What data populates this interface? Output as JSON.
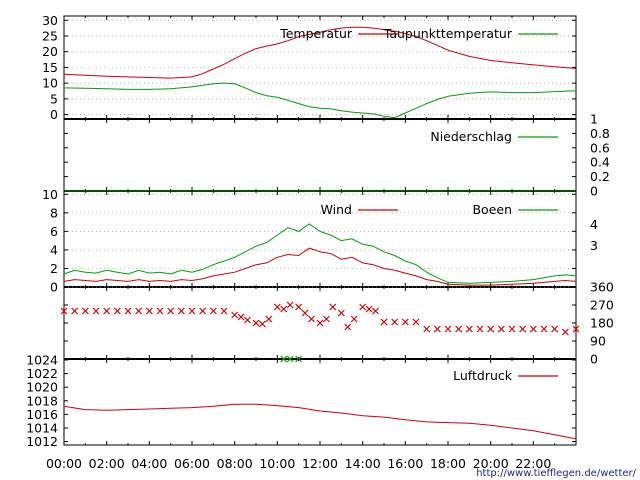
{
  "source_url": "http://www.tiefflegen.de/wetter/",
  "colors": {
    "red": "#d20000",
    "green": "#00a000",
    "grid": "#999999",
    "axis": "#000000"
  },
  "chart_data": [
    {
      "type": "line",
      "panel": "temperature",
      "x_ticks": [
        "00:00",
        "02:00",
        "04:00",
        "06:00",
        "08:00",
        "10:00",
        "12:00",
        "14:00",
        "16:00",
        "18:00",
        "20:00",
        "22:00"
      ],
      "ylim": [
        -3,
        32
      ],
      "y_ticks": [
        0,
        5,
        10,
        15,
        20,
        25,
        30
      ],
      "grid": "horizontal dotted",
      "legend_placement": "top",
      "series": [
        {
          "name": "Temperatur",
          "color": "#d20000",
          "x": [
            0,
            1,
            2,
            3,
            4,
            5,
            6,
            6.5,
            7,
            7.5,
            8,
            8.5,
            9,
            9.5,
            10,
            10.5,
            11,
            11.5,
            12,
            12.5,
            13,
            13.5,
            14,
            14.5,
            15,
            15.5,
            16,
            16.5,
            17,
            17.5,
            18,
            19,
            20,
            21,
            22,
            23,
            24
          ],
          "values": [
            12.8,
            12.5,
            12.2,
            12.0,
            11.8,
            11.6,
            12.0,
            13.0,
            14.5,
            16.0,
            17.8,
            19.5,
            21.0,
            21.8,
            22.5,
            23.5,
            24.8,
            25.5,
            26.2,
            27.0,
            27.5,
            27.8,
            27.8,
            27.5,
            27.0,
            26.5,
            25.8,
            24.8,
            23.5,
            22.0,
            20.5,
            18.5,
            17.2,
            16.5,
            15.8,
            15.2,
            14.7
          ]
        },
        {
          "name": "Taupunkttemperatur",
          "color": "#00a000",
          "x": [
            0,
            1,
            2,
            3,
            4,
            5,
            6,
            6.5,
            7,
            7.5,
            8,
            8.5,
            9,
            9.5,
            10,
            10.5,
            11,
            11.5,
            12,
            12.5,
            13,
            13.5,
            14,
            14.5,
            15,
            15.5,
            16,
            16.5,
            17,
            17.5,
            18,
            19,
            20,
            21,
            22,
            23,
            24
          ],
          "values": [
            8.5,
            8.4,
            8.2,
            8.0,
            8.0,
            8.2,
            8.8,
            9.3,
            9.8,
            10.0,
            9.8,
            8.5,
            7.0,
            6.0,
            5.5,
            4.5,
            3.5,
            2.5,
            2.0,
            1.8,
            1.2,
            0.8,
            0.5,
            0.2,
            -0.5,
            -1.0,
            0.5,
            2.0,
            3.5,
            4.8,
            5.8,
            6.8,
            7.2,
            7.0,
            7.0,
            7.3,
            7.6
          ]
        }
      ]
    },
    {
      "type": "line",
      "panel": "precipitation",
      "x_ticks": [
        "00:00",
        "02:00",
        "04:00",
        "06:00",
        "08:00",
        "10:00",
        "12:00",
        "14:00",
        "16:00",
        "18:00",
        "20:00",
        "22:00"
      ],
      "ylim": [
        0,
        1
      ],
      "y_ticks": [
        0,
        0.2,
        0.4,
        0.6,
        0.8,
        1
      ],
      "series": [
        {
          "name": "Niederschlag",
          "color": "#00a000",
          "x": [
            0,
            24
          ],
          "values": [
            0,
            0
          ]
        }
      ]
    },
    {
      "type": "line",
      "panel": "wind",
      "x_ticks": [
        "00:00",
        "02:00",
        "04:00",
        "06:00",
        "08:00",
        "10:00",
        "12:00",
        "14:00",
        "16:00",
        "18:00",
        "20:00",
        "22:00"
      ],
      "ylim": [
        0,
        11
      ],
      "y_ticks": [
        0,
        2,
        4,
        6,
        8,
        10
      ],
      "y2_ticks": [
        "3",
        "4"
      ],
      "grid": "horizontal dotted",
      "series": [
        {
          "name": "Wind",
          "color": "#d20000",
          "x": [
            0,
            0.5,
            1,
            1.5,
            2,
            2.5,
            3,
            3.5,
            4,
            4.5,
            5,
            5.5,
            6,
            6.5,
            7,
            7.5,
            8,
            8.5,
            9,
            9.5,
            10,
            10.5,
            11,
            11.5,
            12,
            12.5,
            13,
            13.5,
            14,
            14.5,
            15,
            15.5,
            16,
            16.5,
            17,
            17.5,
            18,
            19,
            20,
            21,
            22,
            22.5,
            23,
            23.5,
            24
          ],
          "values": [
            0.6,
            0.8,
            0.7,
            0.6,
            0.8,
            0.7,
            0.6,
            0.8,
            0.6,
            0.7,
            0.6,
            0.8,
            0.7,
            0.9,
            1.2,
            1.4,
            1.6,
            2.0,
            2.4,
            2.6,
            3.2,
            3.5,
            3.4,
            4.2,
            3.8,
            3.6,
            3.0,
            3.2,
            2.6,
            2.4,
            2.0,
            1.8,
            1.5,
            1.2,
            0.8,
            0.6,
            0.3,
            0.2,
            0.2,
            0.3,
            0.4,
            0.5,
            0.6,
            0.7,
            0.6
          ]
        },
        {
          "name": "Boeen",
          "color": "#00a000",
          "x": [
            0,
            0.5,
            1,
            1.5,
            2,
            2.5,
            3,
            3.5,
            4,
            4.5,
            5,
            5.5,
            6,
            6.5,
            7,
            7.5,
            8,
            8.5,
            9,
            9.5,
            10,
            10.5,
            11,
            11.5,
            12,
            12.5,
            13,
            13.5,
            14,
            14.5,
            15,
            15.5,
            16,
            16.5,
            17,
            17.5,
            18,
            19,
            20,
            21,
            22,
            22.5,
            23,
            23.5,
            24
          ],
          "values": [
            1.4,
            1.8,
            1.6,
            1.5,
            1.8,
            1.6,
            1.4,
            1.8,
            1.5,
            1.6,
            1.4,
            1.8,
            1.6,
            1.9,
            2.4,
            2.8,
            3.2,
            3.8,
            4.4,
            4.8,
            5.6,
            6.4,
            6.0,
            6.8,
            6.0,
            5.6,
            5.0,
            5.2,
            4.6,
            4.4,
            3.8,
            3.4,
            2.8,
            2.4,
            1.6,
            1.0,
            0.5,
            0.4,
            0.5,
            0.6,
            0.8,
            1.0,
            1.2,
            1.3,
            1.2
          ]
        }
      ]
    },
    {
      "type": "scatter",
      "panel": "wind_direction",
      "x_ticks": [
        "00:00",
        "02:00",
        "04:00",
        "06:00",
        "08:00",
        "10:00",
        "12:00",
        "14:00",
        "16:00",
        "18:00",
        "20:00",
        "22:00"
      ],
      "ylim": [
        0,
        360
      ],
      "y_ticks": [
        0,
        90,
        180,
        270,
        360
      ],
      "series": [
        {
          "name": "",
          "color": "#d20000",
          "x": [
            0,
            0.5,
            1,
            1.5,
            2,
            2.5,
            3,
            3.5,
            4,
            4.5,
            5,
            5.5,
            6,
            6.5,
            7,
            7.5,
            8,
            8.3,
            8.6,
            9,
            9.3,
            9.6,
            10,
            10.3,
            10.6,
            11,
            11.3,
            11.6,
            12,
            12.3,
            12.6,
            13,
            13.3,
            13.6,
            14,
            14.3,
            14.6,
            15,
            15.5,
            16,
            16.5,
            17,
            17.5,
            18,
            18.5,
            19,
            19.5,
            20,
            20.5,
            21,
            21.5,
            22,
            22.5,
            23,
            23.5,
            24
          ],
          "values": [
            240,
            240,
            240,
            240,
            240,
            240,
            240,
            240,
            240,
            240,
            240,
            240,
            240,
            240,
            240,
            240,
            220,
            210,
            195,
            180,
            175,
            200,
            260,
            250,
            270,
            260,
            230,
            200,
            180,
            200,
            260,
            230,
            160,
            200,
            260,
            250,
            240,
            185,
            185,
            185,
            185,
            150,
            150,
            150,
            150,
            150,
            150,
            150,
            150,
            150,
            150,
            150,
            150,
            150,
            135,
            150
          ]
        },
        {
          "name": "",
          "color": "#00a000",
          "x": [
            10.3,
            10.6,
            11
          ],
          "values": [
            0,
            0,
            0
          ]
        }
      ]
    },
    {
      "type": "line",
      "panel": "pressure",
      "x_ticks": [
        "00:00",
        "02:00",
        "04:00",
        "06:00",
        "08:00",
        "10:00",
        "12:00",
        "14:00",
        "16:00",
        "18:00",
        "20:00",
        "22:00"
      ],
      "ylim": [
        1011.5,
        1024
      ],
      "y_ticks": [
        1012,
        1014,
        1016,
        1018,
        1020,
        1022,
        1024
      ],
      "series": [
        {
          "name": "Luftdruck",
          "color": "#d20000",
          "x": [
            0,
            1,
            2,
            3,
            4,
            5,
            6,
            7,
            8,
            9,
            10,
            11,
            12,
            13,
            14,
            15,
            16,
            17,
            18,
            19,
            20,
            21,
            22,
            23,
            24
          ],
          "values": [
            1017.2,
            1016.7,
            1016.6,
            1016.7,
            1016.8,
            1016.9,
            1017.0,
            1017.2,
            1017.5,
            1017.5,
            1017.3,
            1017.0,
            1016.5,
            1016.2,
            1015.8,
            1015.6,
            1015.2,
            1014.9,
            1014.8,
            1014.7,
            1014.4,
            1014.0,
            1013.6,
            1013.0,
            1012.4
          ]
        }
      ]
    }
  ]
}
